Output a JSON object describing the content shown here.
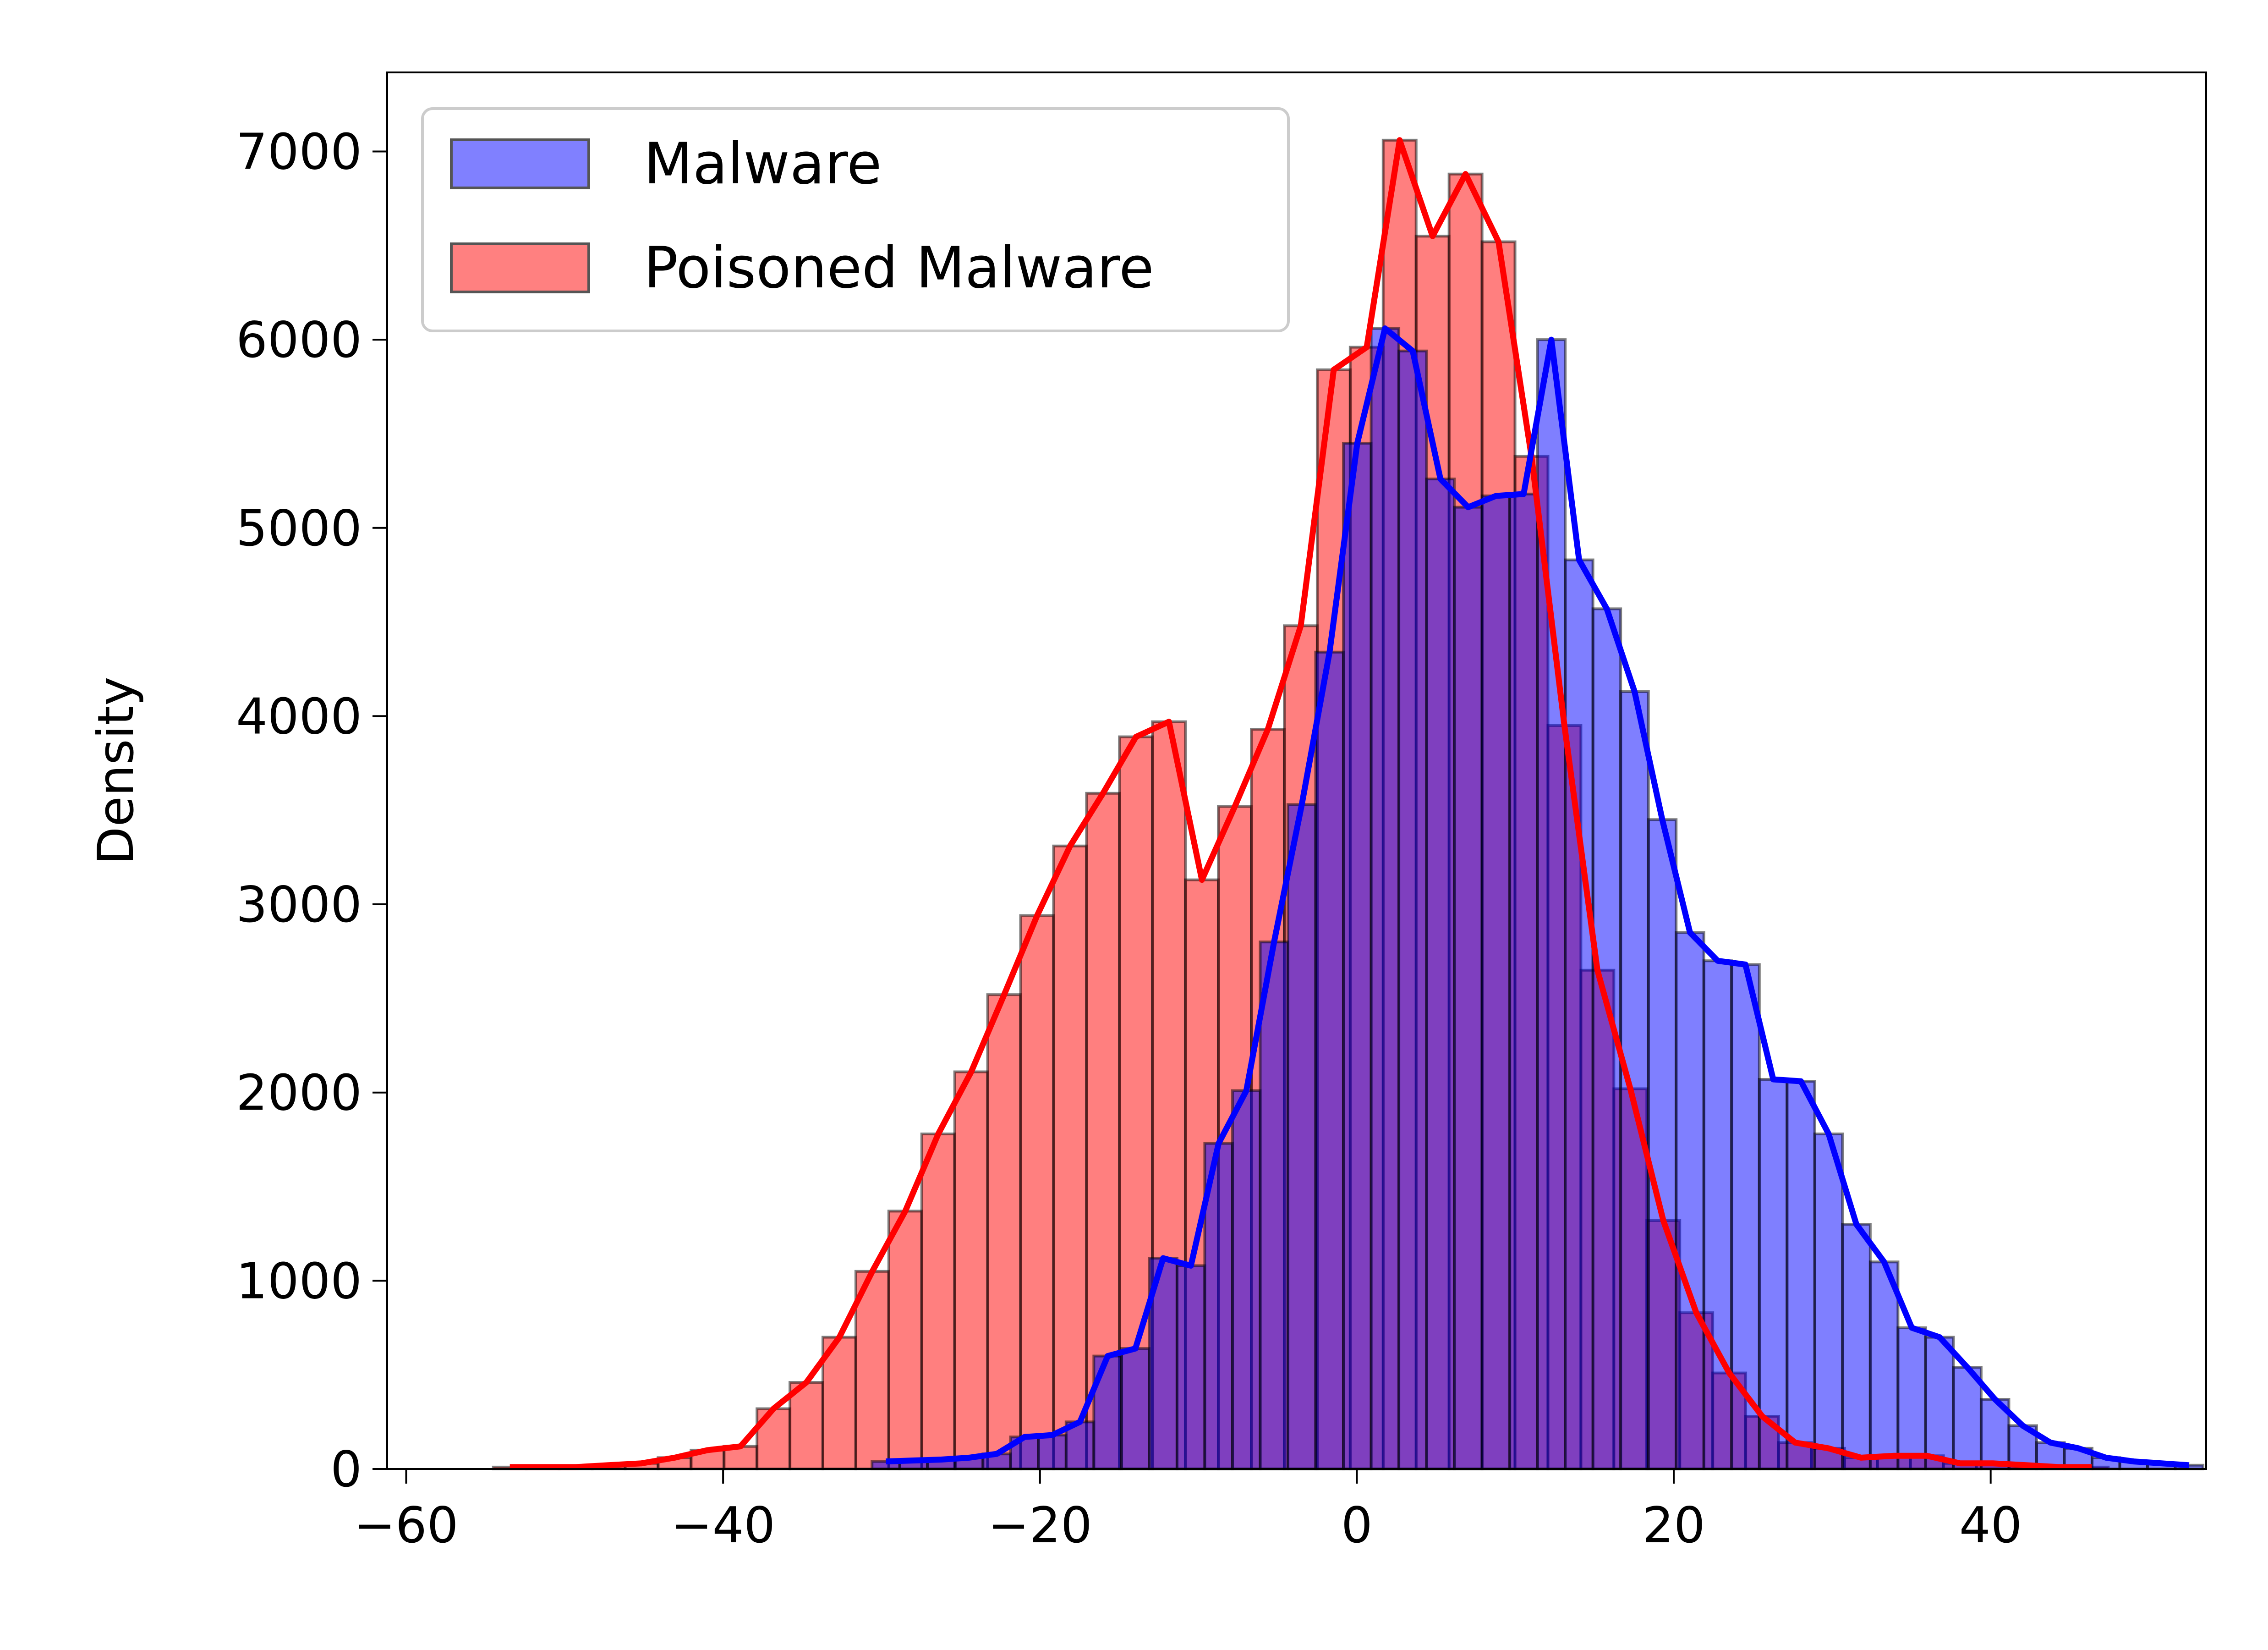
{
  "chart_data": {
    "type": "histogram",
    "title": "",
    "xlabel": "",
    "ylabel": "Density",
    "xlim": [
      -61.2,
      53.6
    ],
    "ylim": [
      0,
      7420
    ],
    "x_ticks": [
      -60,
      -40,
      -20,
      0,
      20,
      40
    ],
    "x_tick_labels": [
      "−60",
      "−40",
      "−20",
      "0",
      "20",
      "40"
    ],
    "y_ticks": [
      0,
      1000,
      2000,
      3000,
      4000,
      5000,
      6000,
      7000
    ],
    "y_tick_labels": [
      "0",
      "1000",
      "2000",
      "3000",
      "4000",
      "5000",
      "6000",
      "7000"
    ],
    "grid": false,
    "legend_position": "top-left",
    "series": [
      {
        "name": "Malware",
        "bar_color": "#8080ff",
        "line_color": "#0000ff",
        "bin_start": -30.6,
        "bin_width": 1.75,
        "values": [
          40,
          45,
          50,
          60,
          80,
          170,
          180,
          250,
          600,
          640,
          1120,
          1080,
          1730,
          2010,
          2800,
          3530,
          4340,
          5450,
          6060,
          5940,
          5260,
          5110,
          5170,
          5180,
          6000,
          4830,
          4570,
          4130,
          3450,
          2850,
          2700,
          2680,
          2070,
          2060,
          1780,
          1300,
          1100,
          750,
          700,
          540,
          370,
          230,
          140,
          110,
          60,
          40,
          30,
          20
        ]
      },
      {
        "name": "Poisoned Malware",
        "bar_color": "#ff8080",
        "line_color": "#ff0000",
        "bin_start": -54.5,
        "bin_width": 2.08,
        "values": [
          10,
          10,
          10,
          20,
          30,
          60,
          100,
          120,
          320,
          460,
          700,
          1050,
          1370,
          1780,
          2110,
          2520,
          2940,
          3310,
          3590,
          3890,
          3970,
          3130,
          3520,
          3930,
          4480,
          5840,
          5960,
          7060,
          6550,
          6880,
          6520,
          5380,
          3950,
          2650,
          2020,
          1320,
          830,
          510,
          280,
          140,
          110,
          60,
          70,
          70,
          30,
          30,
          20,
          10,
          10
        ]
      }
    ]
  }
}
